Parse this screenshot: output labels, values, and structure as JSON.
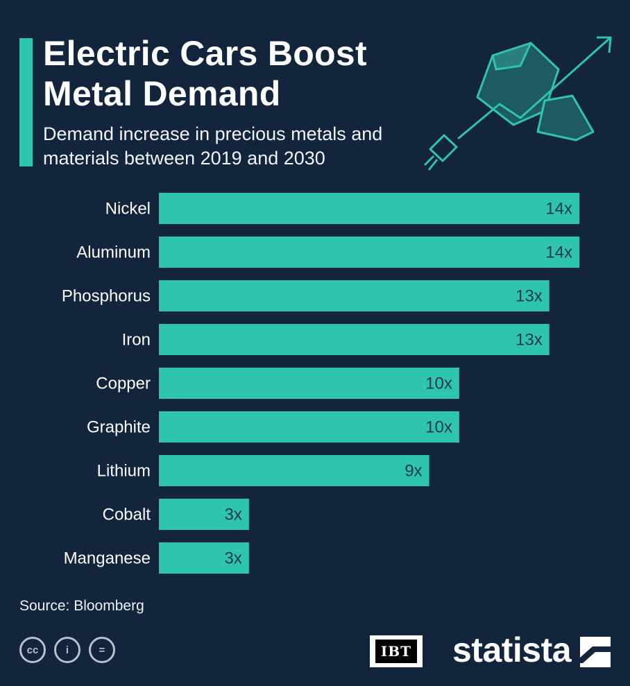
{
  "header": {
    "title": "Electric Cars Boost Metal Demand",
    "subtitle": "Demand increase in precious metals and materials between 2019 and 2030"
  },
  "colors": {
    "background": "#13243d",
    "bar": "#2ec4b0",
    "bar_label": "#1d3a4a",
    "text": "#ffffff"
  },
  "chart_data": {
    "type": "bar",
    "orientation": "horizontal",
    "categories": [
      "Nickel",
      "Aluminum",
      "Phosphorus",
      "Iron",
      "Copper",
      "Graphite",
      "Lithium",
      "Cobalt",
      "Manganese"
    ],
    "values": [
      14,
      14,
      13,
      13,
      10,
      10,
      9,
      3,
      3
    ],
    "value_labels": [
      "14x",
      "14x",
      "13x",
      "13x",
      "10x",
      "10x",
      "9x",
      "3x",
      "3x"
    ],
    "xlim": [
      0,
      14
    ],
    "grid": false,
    "legend": "none"
  },
  "footer": {
    "source": "Source: Bloomberg",
    "license_icons": [
      "cc-icon",
      "attribution-icon",
      "no-derivatives-icon"
    ],
    "license_glyphs": [
      "cc",
      "=",
      "i"
    ],
    "partner": "IBT",
    "brand": "statista"
  }
}
